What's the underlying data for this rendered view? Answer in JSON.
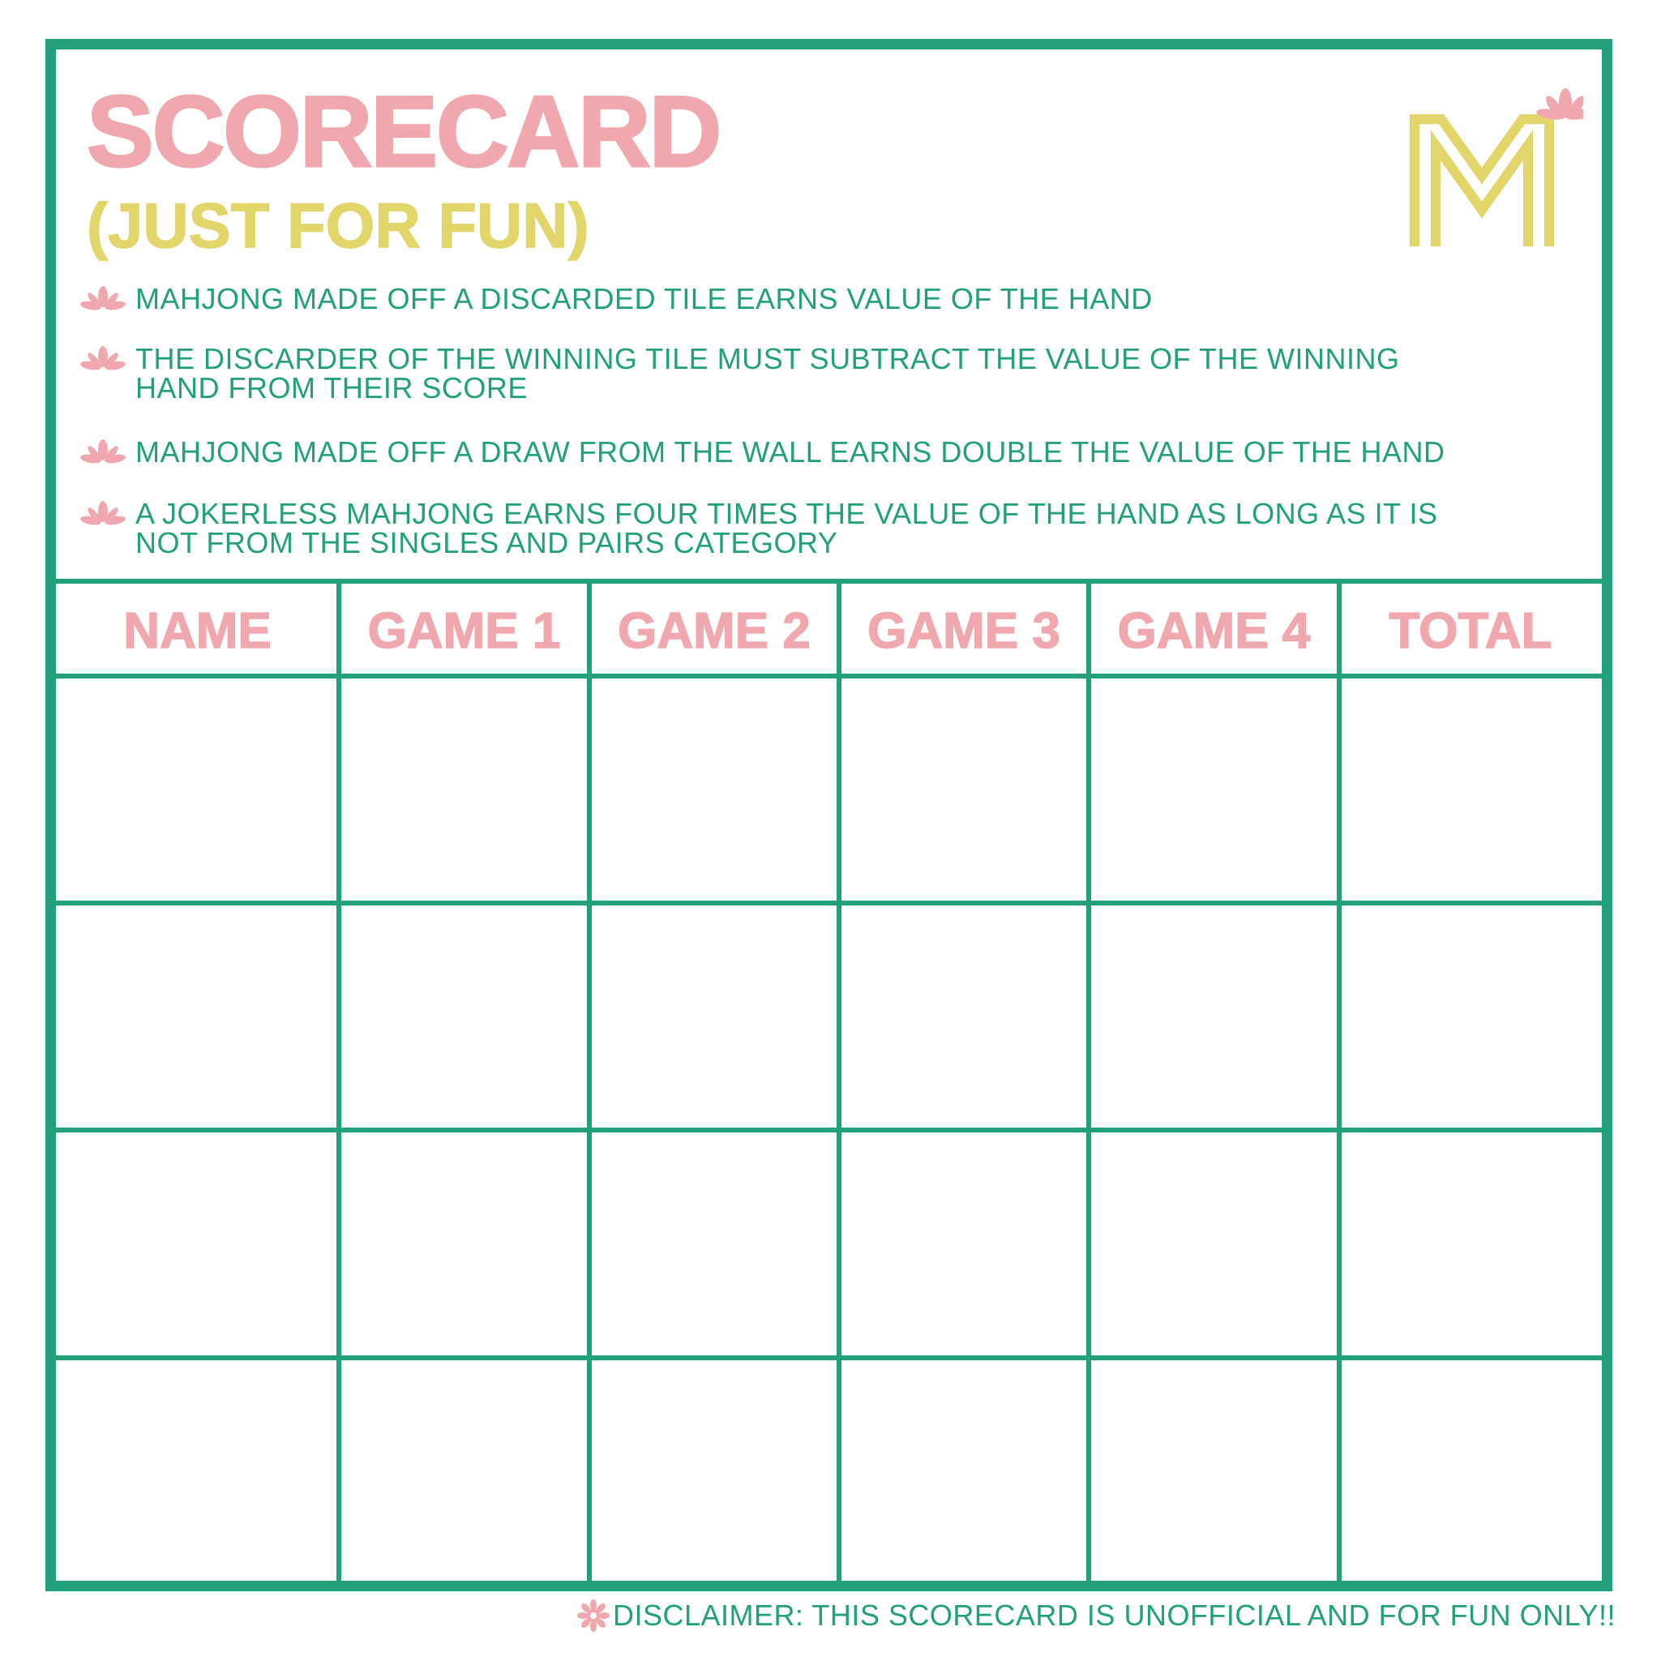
{
  "header": {
    "title": "SCORECARD",
    "subtitle": "(JUST FOR FUN)",
    "logo_letter": "M"
  },
  "rules": [
    {
      "icon": "lotus-icon",
      "text": "MAHJONG MADE OFF A DISCARDED TILE EARNS VALUE OF THE HAND"
    },
    {
      "icon": "lotus-icon",
      "text": "THE DISCARDER OF THE WINNING TILE MUST SUBTRACT THE VALUE OF THE WINNING\nHAND FROM THEIR SCORE"
    },
    {
      "icon": "lotus-icon",
      "text": "MAHJONG MADE OFF A DRAW FROM THE WALL EARNS DOUBLE THE VALUE OF THE HAND"
    },
    {
      "icon": "lotus-icon",
      "text": "A JOKERLESS MAHJONG EARNS FOUR TIMES THE VALUE OF THE HAND AS LONG AS IT IS\nNOT FROM THE SINGLES AND PAIRS CATEGORY"
    }
  ],
  "table": {
    "columns": [
      "NAME",
      "GAME 1",
      "GAME 2",
      "GAME 3",
      "GAME 4",
      "TOTAL"
    ],
    "rows": [
      [
        "",
        "",
        "",
        "",
        "",
        ""
      ],
      [
        "",
        "",
        "",
        "",
        "",
        ""
      ],
      [
        "",
        "",
        "",
        "",
        "",
        ""
      ],
      [
        "",
        "",
        "",
        "",
        "",
        ""
      ]
    ]
  },
  "footer": {
    "disclaimer": "DISCLAIMER: THIS SCORECARD IS UNOFFICIAL AND FOR FUN ONLY!!",
    "icon": "flower-icon"
  },
  "colors": {
    "green": "#22a07c",
    "pink": "#f0a8ae",
    "yellow": "#e2d66b"
  }
}
